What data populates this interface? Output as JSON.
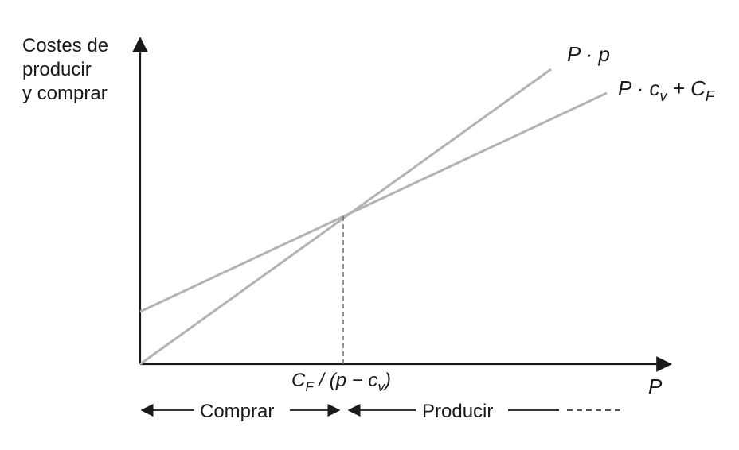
{
  "y_axis_label": [
    "Costes de",
    "producir",
    "y comprar"
  ],
  "x_axis_label": "P",
  "line_revenue_label": {
    "main": "P · p"
  },
  "line_cost_label": {
    "main": "P · c",
    "sub1": "v",
    "plus": " + C",
    "sub2": "F"
  },
  "breakeven_label": {
    "c": "C",
    "csub": "F",
    "mid": " / (p − c",
    "vsub": "v",
    "close": ")"
  },
  "regions": {
    "buy": "Comprar",
    "produce": "Producir"
  },
  "colors": {
    "axis": "#1a1a1a",
    "lines": "#b3b3b3",
    "dashed": "#6e6e6e"
  }
}
